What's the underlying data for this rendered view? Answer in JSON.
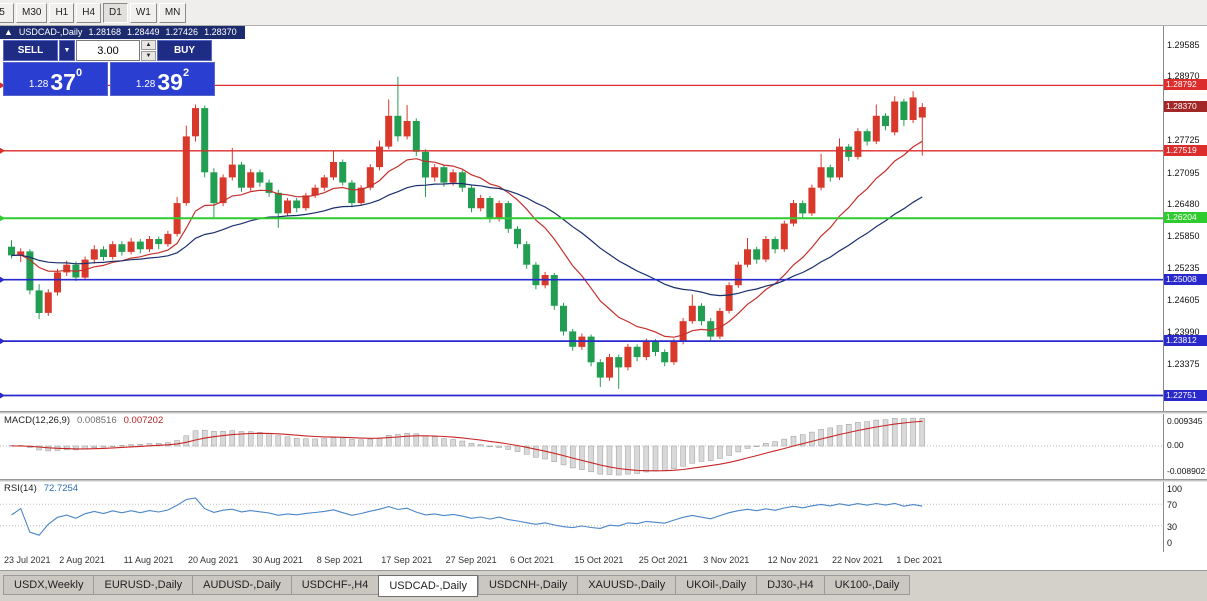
{
  "toolbar": {
    "timeframes": [
      {
        "label": "5",
        "active": false
      },
      {
        "label": "M30",
        "active": false
      },
      {
        "label": "H1",
        "active": false
      },
      {
        "label": "H4",
        "active": false
      },
      {
        "label": "D1",
        "active": true
      },
      {
        "label": "W1",
        "active": false
      },
      {
        "label": "MN",
        "active": false
      }
    ]
  },
  "header": {
    "arrow": "▲",
    "symbol": "USDCAD-,Daily",
    "open": "1.28168",
    "high": "1.28449",
    "low": "1.27426",
    "close": "1.28370"
  },
  "trade_panel": {
    "sell_label": "SELL",
    "buy_label": "BUY",
    "volume": "3.00",
    "dropdown_glyph": "▼",
    "spin_up_glyph": "▲",
    "spin_down_glyph": "▼",
    "sell_price": {
      "big": "1.28",
      "pips": "37",
      "pt": "0"
    },
    "buy_price": {
      "big": "1.28",
      "pips": "39",
      "pt": "2"
    }
  },
  "indicators": {
    "macd": {
      "label": "MACD(12,26,9)",
      "value_main": "0.008516",
      "value_signal": "0.007202",
      "axis": [
        "0.009345",
        "0.00",
        "-0.008902"
      ],
      "fast": 12,
      "slow": 26,
      "signal": 9
    },
    "rsi": {
      "label": "RSI(14)",
      "value": "72.7254",
      "axis": [
        "100",
        "70",
        "30",
        "0"
      ],
      "period": 14,
      "levels": [
        70,
        30
      ]
    }
  },
  "colors": {
    "candle_up": "#d8392b",
    "candle_down": "#219e52",
    "macd_hist": "#d9d9d9",
    "macd_hist_border": "#9a9a9a",
    "macd_signal": "#c92525",
    "rsi_line": "#4a86c8",
    "current_tag_bg": "#a22828"
  },
  "chart_data": {
    "type": "candlestick",
    "symbol": "USDCAD",
    "timeframe": "Daily",
    "scale": {
      "price_top": 1.2995,
      "price_bottom": 1.2245
    },
    "current_price": "1.28370",
    "current_price_value": 1.2837,
    "price_axis_ticks": [
      "1.29585",
      "1.28970",
      "1.27725",
      "1.27095",
      "1.26480",
      "1.25850",
      "1.25235",
      "1.24605",
      "1.23990",
      "1.23375"
    ],
    "hlines": [
      {
        "price": 1.28792,
        "label": "1.28792",
        "color": "#dd2c2c",
        "width": 1.3
      },
      {
        "price": 1.27519,
        "label": "1.27519",
        "color": "#dd2c2c",
        "width": 1.3
      },
      {
        "price": 1.26204,
        "label": "1.26204",
        "color": "#2fcc30",
        "width": 2
      },
      {
        "price": 1.25008,
        "label": "1.25008",
        "color": "#2929cc",
        "width": 1.7
      },
      {
        "price": 1.23812,
        "label": "1.23812",
        "color": "#2929cc",
        "width": 1.7
      },
      {
        "price": 1.22751,
        "label": "1.22751",
        "color": "#2929cc",
        "width": 1.7
      }
    ],
    "moving_averages": [
      {
        "period": 13,
        "color": "#c4302b"
      },
      {
        "period": 34,
        "color": "#1b2f6e"
      }
    ],
    "date_labels": [
      {
        "label": "23 Jul 2021",
        "i": 0
      },
      {
        "label": "2 Aug 2021",
        "i": 6
      },
      {
        "label": "11 Aug 2021",
        "i": 13
      },
      {
        "label": "20 Aug 2021",
        "i": 20
      },
      {
        "label": "30 Aug 2021",
        "i": 27
      },
      {
        "label": "8 Sep 2021",
        "i": 34
      },
      {
        "label": "17 Sep 2021",
        "i": 41
      },
      {
        "label": "27 Sep 2021",
        "i": 48
      },
      {
        "label": "6 Oct 2021",
        "i": 55
      },
      {
        "label": "15 Oct 2021",
        "i": 62
      },
      {
        "label": "25 Oct 2021",
        "i": 69
      },
      {
        "label": "3 Nov 2021",
        "i": 76
      },
      {
        "label": "12 Nov 2021",
        "i": 83
      },
      {
        "label": "22 Nov 2021",
        "i": 90
      },
      {
        "label": "1 Dec 2021",
        "i": 97
      }
    ],
    "candles": [
      [
        1.2565,
        1.2578,
        1.2542,
        1.2548
      ],
      [
        1.2548,
        1.2562,
        1.2535,
        1.2556
      ],
      [
        1.2556,
        1.256,
        1.2472,
        1.248
      ],
      [
        1.248,
        1.2492,
        1.2424,
        1.2436
      ],
      [
        1.2436,
        1.2482,
        1.243,
        1.2476
      ],
      [
        1.2476,
        1.2522,
        1.247,
        1.2515
      ],
      [
        1.2515,
        1.2538,
        1.2508,
        1.253
      ],
      [
        1.253,
        1.2536,
        1.2498,
        1.2505
      ],
      [
        1.2505,
        1.2546,
        1.25,
        1.254
      ],
      [
        1.254,
        1.2568,
        1.2532,
        1.256
      ],
      [
        1.256,
        1.2566,
        1.2538,
        1.2545
      ],
      [
        1.2545,
        1.2576,
        1.254,
        1.257
      ],
      [
        1.257,
        1.2576,
        1.2548,
        1.2555
      ],
      [
        1.2555,
        1.2582,
        1.255,
        1.2575
      ],
      [
        1.2575,
        1.258,
        1.2552,
        1.256
      ],
      [
        1.256,
        1.2586,
        1.2555,
        1.258
      ],
      [
        1.258,
        1.2585,
        1.256,
        1.257
      ],
      [
        1.257,
        1.2596,
        1.2565,
        1.259
      ],
      [
        1.259,
        1.2662,
        1.2585,
        1.265
      ],
      [
        1.265,
        1.2801,
        1.2645,
        1.278
      ],
      [
        1.278,
        1.2842,
        1.277,
        1.2835
      ],
      [
        1.2835,
        1.284,
        1.27,
        1.271
      ],
      [
        1.271,
        1.2718,
        1.2622,
        1.265
      ],
      [
        1.265,
        1.2706,
        1.2644,
        1.27
      ],
      [
        1.27,
        1.2758,
        1.2694,
        1.2725
      ],
      [
        1.2725,
        1.273,
        1.2672,
        1.268
      ],
      [
        1.268,
        1.2716,
        1.2674,
        1.271
      ],
      [
        1.271,
        1.2715,
        1.2682,
        1.269
      ],
      [
        1.269,
        1.2696,
        1.2662,
        1.267
      ],
      [
        1.267,
        1.2676,
        1.2602,
        1.263
      ],
      [
        1.263,
        1.266,
        1.2624,
        1.2655
      ],
      [
        1.2655,
        1.266,
        1.2632,
        1.264
      ],
      [
        1.264,
        1.267,
        1.2635,
        1.2665
      ],
      [
        1.2665,
        1.2686,
        1.266,
        1.268
      ],
      [
        1.268,
        1.2705,
        1.2674,
        1.27
      ],
      [
        1.27,
        1.2752,
        1.2695,
        1.273
      ],
      [
        1.273,
        1.2735,
        1.2684,
        1.269
      ],
      [
        1.269,
        1.2695,
        1.2642,
        1.265
      ],
      [
        1.265,
        1.2685,
        1.2645,
        1.268
      ],
      [
        1.268,
        1.2726,
        1.2675,
        1.272
      ],
      [
        1.272,
        1.2772,
        1.2714,
        1.276
      ],
      [
        1.276,
        1.2852,
        1.2755,
        1.282
      ],
      [
        1.282,
        1.2896,
        1.277,
        1.278
      ],
      [
        1.278,
        1.2841,
        1.2774,
        1.281
      ],
      [
        1.281,
        1.2815,
        1.2742,
        1.275
      ],
      [
        1.275,
        1.2755,
        1.2662,
        1.27
      ],
      [
        1.27,
        1.2726,
        1.2692,
        1.272
      ],
      [
        1.272,
        1.2724,
        1.2682,
        1.269
      ],
      [
        1.269,
        1.2716,
        1.2684,
        1.271
      ],
      [
        1.271,
        1.2714,
        1.2672,
        1.268
      ],
      [
        1.268,
        1.2684,
        1.2632,
        1.264
      ],
      [
        1.264,
        1.2666,
        1.2634,
        1.266
      ],
      [
        1.266,
        1.2664,
        1.2612,
        1.262
      ],
      [
        1.262,
        1.2655,
        1.2614,
        1.265
      ],
      [
        1.265,
        1.2654,
        1.2592,
        1.26
      ],
      [
        1.26,
        1.2605,
        1.2562,
        1.257
      ],
      [
        1.257,
        1.2576,
        1.2522,
        1.253
      ],
      [
        1.253,
        1.2535,
        1.2482,
        1.249
      ],
      [
        1.249,
        1.2516,
        1.2484,
        1.251
      ],
      [
        1.251,
        1.2514,
        1.2442,
        1.245
      ],
      [
        1.245,
        1.2456,
        1.2392,
        1.24
      ],
      [
        1.24,
        1.2405,
        1.2362,
        1.237
      ],
      [
        1.237,
        1.2396,
        1.2364,
        1.239
      ],
      [
        1.239,
        1.2394,
        1.2332,
        1.234
      ],
      [
        1.234,
        1.2346,
        1.2292,
        1.231
      ],
      [
        1.231,
        1.2356,
        1.2304,
        1.235
      ],
      [
        1.235,
        1.2355,
        1.2288,
        1.233
      ],
      [
        1.233,
        1.2376,
        1.2324,
        1.237
      ],
      [
        1.237,
        1.2375,
        1.2342,
        1.235
      ],
      [
        1.235,
        1.2386,
        1.2344,
        1.238
      ],
      [
        1.238,
        1.2385,
        1.2352,
        1.236
      ],
      [
        1.236,
        1.2365,
        1.2332,
        1.234
      ],
      [
        1.234,
        1.2386,
        1.2335,
        1.238
      ],
      [
        1.238,
        1.2426,
        1.2375,
        1.242
      ],
      [
        1.242,
        1.2472,
        1.2415,
        1.245
      ],
      [
        1.245,
        1.2455,
        1.2412,
        1.242
      ],
      [
        1.242,
        1.2426,
        1.2382,
        1.239
      ],
      [
        1.239,
        1.2446,
        1.2385,
        1.244
      ],
      [
        1.244,
        1.2496,
        1.2435,
        1.249
      ],
      [
        1.249,
        1.2536,
        1.2485,
        1.253
      ],
      [
        1.253,
        1.2582,
        1.2525,
        1.256
      ],
      [
        1.256,
        1.2565,
        1.2532,
        1.254
      ],
      [
        1.254,
        1.2586,
        1.2535,
        1.258
      ],
      [
        1.258,
        1.2585,
        1.2552,
        1.256
      ],
      [
        1.256,
        1.2616,
        1.2555,
        1.261
      ],
      [
        1.261,
        1.2656,
        1.2605,
        1.265
      ],
      [
        1.265,
        1.2655,
        1.2622,
        1.263
      ],
      [
        1.263,
        1.2686,
        1.2625,
        1.268
      ],
      [
        1.268,
        1.2746,
        1.2675,
        1.272
      ],
      [
        1.272,
        1.2725,
        1.2692,
        1.27
      ],
      [
        1.27,
        1.2776,
        1.2695,
        1.276
      ],
      [
        1.276,
        1.2765,
        1.2732,
        1.274
      ],
      [
        1.274,
        1.2796,
        1.2735,
        1.279
      ],
      [
        1.279,
        1.2795,
        1.2762,
        1.277
      ],
      [
        1.277,
        1.2842,
        1.2765,
        1.282
      ],
      [
        1.282,
        1.2825,
        1.2792,
        1.28
      ],
      [
        1.2788,
        1.2858,
        1.2782,
        1.2848
      ],
      [
        1.2848,
        1.2853,
        1.28,
        1.2812
      ],
      [
        1.2812,
        1.2868,
        1.2806,
        1.2856
      ],
      [
        1.28168,
        1.28449,
        1.27426,
        1.2837
      ]
    ]
  },
  "tabs": [
    {
      "label": "USDX,Weekly",
      "active": false
    },
    {
      "label": "EURUSD-,Daily",
      "active": false
    },
    {
      "label": "AUDUSD-,Daily",
      "active": false
    },
    {
      "label": "USDCHF-,H4",
      "active": false
    },
    {
      "label": "USDCAD-,Daily",
      "active": true
    },
    {
      "label": "USDCNH-,Daily",
      "active": false
    },
    {
      "label": "XAUUSD-,Daily",
      "active": false
    },
    {
      "label": "UKOil-,Daily",
      "active": false
    },
    {
      "label": "DJ30-,H4",
      "active": false
    },
    {
      "label": "UK100-,Daily",
      "active": false
    }
  ]
}
